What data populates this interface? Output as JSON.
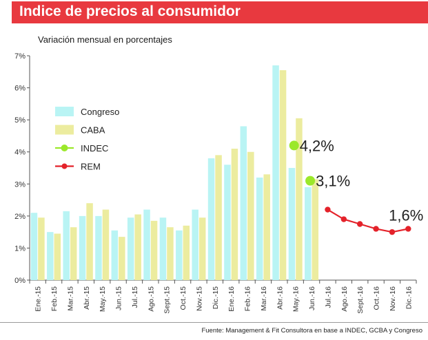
{
  "header": {
    "title": "Indice de precios al consumidor"
  },
  "source": "Fuente: Management & Fit Consultora en base a INDEC, GCBA y Congreso",
  "colors": {
    "accent": "#e8393f",
    "congreso": "#b9f4f4",
    "caba": "#ecec9f",
    "indec": "#9be82a",
    "rem": "#e4222a"
  },
  "chart_data": {
    "type": "bar",
    "title": "Variación mensual en porcentajes",
    "xlabel": "",
    "ylabel": "",
    "ylim": [
      0,
      7
    ],
    "y_ticks": [
      "0%",
      "1%",
      "2%",
      "3%",
      "4%",
      "5%",
      "6%",
      "7%"
    ],
    "categories": [
      "Ene.-15",
      "Feb.-15",
      "Mar.-15",
      "Abr.-15",
      "May.-15",
      "Jun.-15",
      "Jul.-15",
      "Ago.-15",
      "Sept.-15",
      "Oct.-15",
      "Nov.-15",
      "Dic.-15",
      "Ene.-16",
      "Feb.-16",
      "Mar.-16",
      "Abr.-16",
      "May.-16",
      "Jun.-16",
      "Jul.-16",
      "Ago.-16",
      "Sept.-16",
      "Oct.-16",
      "Nov.-16",
      "Dic.-16"
    ],
    "series": [
      {
        "name": "Congreso",
        "kind": "bar",
        "values": [
          2.1,
          1.5,
          2.15,
          2.0,
          2.0,
          1.55,
          1.95,
          2.2,
          1.95,
          1.55,
          2.2,
          3.8,
          3.6,
          4.8,
          3.2,
          6.7,
          3.5,
          2.9,
          null,
          null,
          null,
          null,
          null,
          null
        ]
      },
      {
        "name": "CABA",
        "kind": "bar",
        "values": [
          1.95,
          1.45,
          1.65,
          2.4,
          2.2,
          1.35,
          2.05,
          1.85,
          1.65,
          1.7,
          1.95,
          3.9,
          4.1,
          4.0,
          3.3,
          6.55,
          5.05,
          3.15,
          null,
          null,
          null,
          null,
          null,
          null
        ]
      },
      {
        "name": "INDEC",
        "kind": "point",
        "values": [
          null,
          null,
          null,
          null,
          null,
          null,
          null,
          null,
          null,
          null,
          null,
          null,
          null,
          null,
          null,
          null,
          4.2,
          3.1,
          null,
          null,
          null,
          null,
          null,
          null
        ]
      },
      {
        "name": "REM",
        "kind": "line",
        "values": [
          null,
          null,
          null,
          null,
          null,
          null,
          null,
          null,
          null,
          null,
          null,
          null,
          null,
          null,
          null,
          null,
          null,
          null,
          2.2,
          1.9,
          1.75,
          1.6,
          1.5,
          1.6
        ]
      }
    ],
    "annotations": [
      {
        "text": "4,2%",
        "category": "May.-16",
        "value": 4.2
      },
      {
        "text": "3,1%",
        "category": "Jun.-16",
        "value": 3.1
      },
      {
        "text": "1,6%",
        "category": "Dic.-16",
        "value": 1.6
      }
    ],
    "legend": {
      "placement": "top-left",
      "entries": [
        "Congreso",
        "CABA",
        "INDEC",
        "REM"
      ]
    },
    "grid": false
  }
}
